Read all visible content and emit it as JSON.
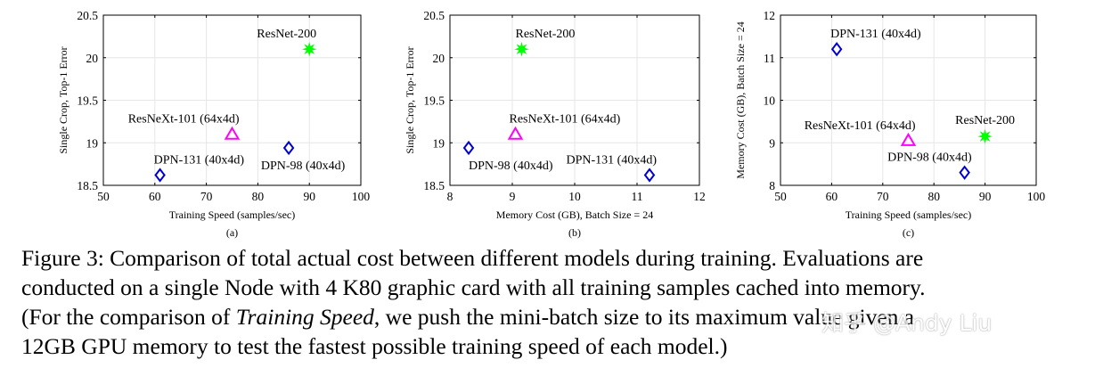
{
  "chart_data": [
    {
      "type": "scatter",
      "panel_label": "(a)",
      "title": "",
      "xlabel": "Training Speed (samples/sec)",
      "ylabel": "Single Crop, Top-1 Error",
      "xlim": [
        50,
        100
      ],
      "ylim": [
        18.5,
        20.5
      ],
      "xticks": [
        "50",
        "60",
        "70",
        "80",
        "90",
        "100"
      ],
      "yticks": [
        "18.5",
        "19",
        "19.5",
        "20",
        "20.5"
      ],
      "grid": true,
      "points": [
        {
          "label": "ResNet-200",
          "x": 90,
          "y": 20.1,
          "marker": "star",
          "color": "#00ff00",
          "label_pos": "above-left"
        },
        {
          "label": "ResNeXt-101 (64x4d)",
          "x": 75,
          "y": 19.1,
          "marker": "triangle",
          "color": "#ff00ff",
          "label_pos": "above-left"
        },
        {
          "label": "DPN-131 (40x4d)",
          "x": 61,
          "y": 18.62,
          "marker": "diamond",
          "color": "#0000cc",
          "label_pos": "above-right"
        },
        {
          "label": "DPN-98 (40x4d)",
          "x": 86,
          "y": 18.94,
          "marker": "diamond",
          "color": "#0000cc",
          "label_pos": "below-center"
        }
      ]
    },
    {
      "type": "scatter",
      "panel_label": "(b)",
      "title": "",
      "xlabel": "Memory Cost (GB), Batch Size = 24",
      "ylabel": "Single Crop, Top-1 Error",
      "xlim": [
        8,
        12
      ],
      "ylim": [
        18.5,
        20.5
      ],
      "xticks": [
        "8",
        "9",
        "10",
        "11",
        "12"
      ],
      "yticks": [
        "18.5",
        "19",
        "19.5",
        "20",
        "20.5"
      ],
      "grid": true,
      "points": [
        {
          "label": "ResNet-200",
          "x": 9.15,
          "y": 20.1,
          "marker": "star",
          "color": "#00ff00",
          "label_pos": "above-right"
        },
        {
          "label": "ResNeXt-101 (64x4d)",
          "x": 9.05,
          "y": 19.1,
          "marker": "triangle",
          "color": "#ff00ff",
          "label_pos": "above-right"
        },
        {
          "label": "DPN-98 (40x4d)",
          "x": 8.3,
          "y": 18.94,
          "marker": "diamond",
          "color": "#0000cc",
          "label_pos": "below-right"
        },
        {
          "label": "DPN-131 (40x4d)",
          "x": 11.2,
          "y": 18.62,
          "marker": "diamond",
          "color": "#0000cc",
          "label_pos": "above-left"
        }
      ]
    },
    {
      "type": "scatter",
      "panel_label": "(c)",
      "title": "",
      "xlabel": "Training Speed (samples/sec)",
      "ylabel": "Memory Cost (GB), Batch Size = 24",
      "xlim": [
        50,
        100
      ],
      "ylim": [
        8,
        12
      ],
      "xticks": [
        "50",
        "60",
        "70",
        "80",
        "90",
        "100"
      ],
      "yticks": [
        "8",
        "9",
        "10",
        "11",
        "12"
      ],
      "grid": true,
      "points": [
        {
          "label": "DPN-131 (40x4d)",
          "x": 61,
          "y": 11.2,
          "marker": "diamond",
          "color": "#0000cc",
          "label_pos": "above-right"
        },
        {
          "label": "ResNeXt-101 (64x4d)",
          "x": 75,
          "y": 9.05,
          "marker": "triangle",
          "color": "#ff00ff",
          "label_pos": "above-left"
        },
        {
          "label": "ResNet-200",
          "x": 90,
          "y": 9.15,
          "marker": "star",
          "color": "#00ff00",
          "label_pos": "above-center"
        },
        {
          "label": "DPN-98 (40x4d)",
          "x": 86,
          "y": 8.3,
          "marker": "diamond",
          "color": "#0000cc",
          "label_pos": "above-left"
        }
      ]
    }
  ],
  "caption": {
    "line1": "Figure 3: Comparison of total actual cost between different models during training. Evaluations are",
    "line2": "conducted on a single Node with 4 K80 graphic card with all training samples cached into memory.",
    "line3_before": "(For the comparison of ",
    "line3_italic": "Training Speed",
    "line3_after": ", we push the mini-batch size to its maximum value given a",
    "line4": "12GB GPU memory to test the fastest possible training speed of each model.)"
  },
  "watermark": "知乎 @Andy Liu"
}
